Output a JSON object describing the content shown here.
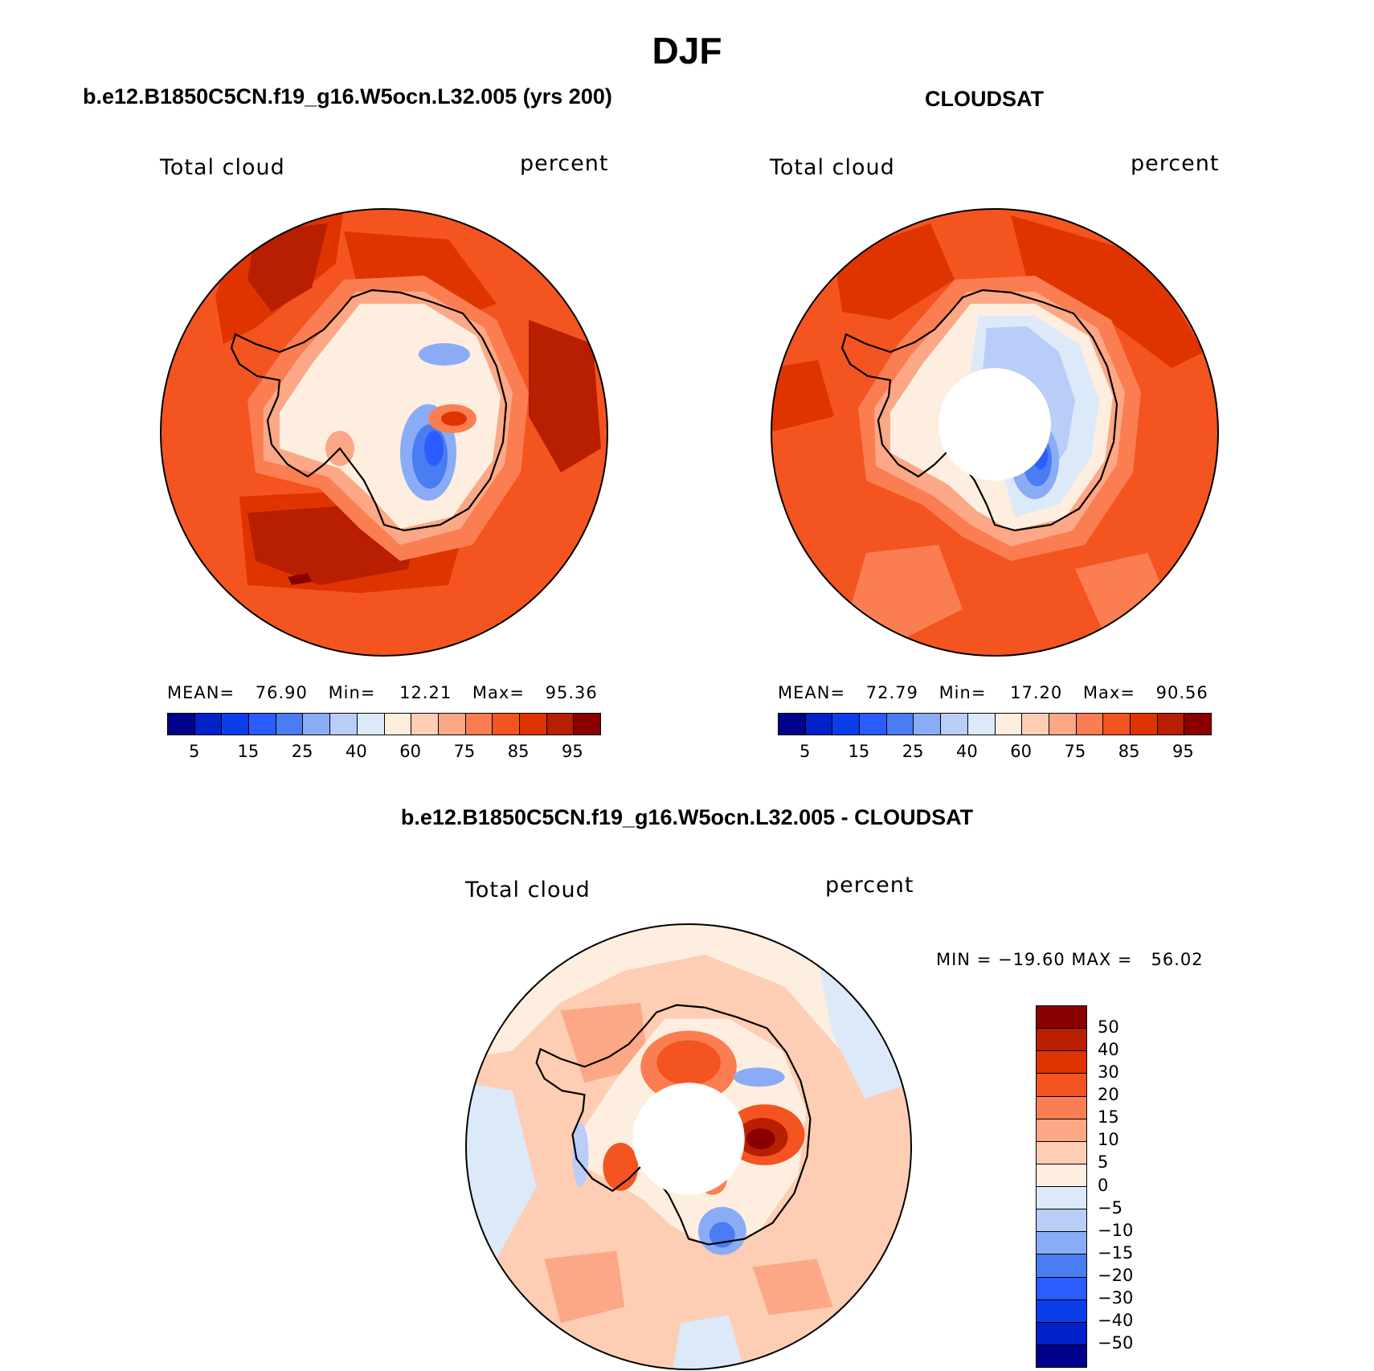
{
  "figure": {
    "season": "DJF"
  },
  "panel_model": {
    "title": "b.e12.B1850C5CN.f19_g16.W5ocn.L32.005 (yrs 200)",
    "variable": "Total cloud",
    "units": "percent",
    "stats": {
      "mean_label": "MEAN=",
      "mean": "76.90",
      "min_label": "Min=",
      "min": "12.21",
      "max_label": "Max=",
      "max": "95.36"
    },
    "colorbar_ticks": [
      "5",
      "15",
      "25",
      "40",
      "60",
      "75",
      "85",
      "95"
    ]
  },
  "panel_obs": {
    "title": "CLOUDSAT",
    "variable": "Total cloud",
    "units": "percent",
    "stats": {
      "mean_label": "MEAN=",
      "mean": "72.79",
      "min_label": "Min=",
      "min": "17.20",
      "max_label": "Max=",
      "max": "90.56"
    },
    "colorbar_ticks": [
      "5",
      "15",
      "25",
      "40",
      "60",
      "75",
      "85",
      "95"
    ]
  },
  "panel_diff": {
    "title": "b.e12.B1850C5CN.f19_g16.W5ocn.L32.005 - CLOUDSAT",
    "variable": "Total cloud",
    "units": "percent",
    "minmax_text": "MIN = −19.60 MAX =   56.02",
    "colorbar_ticks": [
      "50",
      "40",
      "30",
      "20",
      "15",
      "10",
      "5",
      "0",
      "−5",
      "−10",
      "−15",
      "−20",
      "−30",
      "−40",
      "−50"
    ]
  },
  "colors": {
    "abs_palette": [
      "#00008b",
      "#0022c8",
      "#0a3ee8",
      "#2a5cff",
      "#4a7cf2",
      "#8aacf6",
      "#b8cdf8",
      "#dce9f8",
      "#fdeee0",
      "#fdcdb4",
      "#fca886",
      "#fb7e52",
      "#f45420",
      "#e03400",
      "#b81e00",
      "#8a0000"
    ],
    "diff_palette": [
      "#8a0000",
      "#b81e00",
      "#e03400",
      "#f45420",
      "#fb7e52",
      "#fca886",
      "#fdcdb4",
      "#fdeee0",
      "#dce9f8",
      "#b8cdf8",
      "#8aacf6",
      "#4a7cf2",
      "#2a5cff",
      "#0a3ee8",
      "#0022c8",
      "#00008b"
    ]
  }
}
